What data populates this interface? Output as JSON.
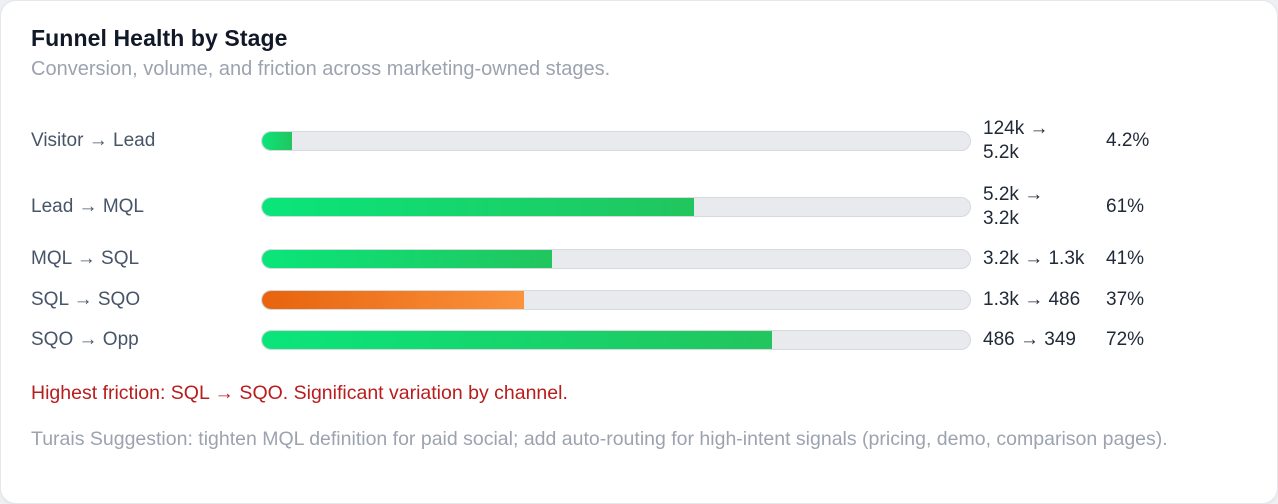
{
  "card": {
    "title": "Funnel Health by Stage",
    "subtitle": "Conversion, volume, and friction across marketing-owned stages.",
    "friction_note": "Highest friction: SQL → SQO. Significant variation by channel.",
    "suggestion_note": "Turais Suggestion: tighten MQL definition for paid social; add auto-routing for high-intent signals (pricing, demo, comparison pages)."
  },
  "colors": {
    "green": {
      "start": "#0ae57a",
      "end": "#22c55e"
    },
    "orange": {
      "start": "#e8630d",
      "end": "#fb923c"
    },
    "track": "#e8eaee",
    "friction_text": "#b91c1c",
    "muted_text": "#9ca3af"
  },
  "rows": [
    {
      "label": "Visitor → Lead",
      "value_lines": [
        "124k →",
        "5.2k"
      ],
      "pct_label": "4.2%",
      "pct_value": 4.2,
      "color": "green"
    },
    {
      "label": "Lead → MQL",
      "value_lines": [
        "5.2k →",
        "3.2k"
      ],
      "pct_label": "61%",
      "pct_value": 61,
      "color": "green"
    },
    {
      "label": "MQL → SQL",
      "value_lines": [
        "3.2k → 1.3k"
      ],
      "pct_label": "41%",
      "pct_value": 41,
      "color": "green"
    },
    {
      "label": "SQL → SQO",
      "value_lines": [
        "1.3k → 486"
      ],
      "pct_label": "37%",
      "pct_value": 37,
      "color": "orange"
    },
    {
      "label": "SQO → Opp",
      "value_lines": [
        "486 → 349"
      ],
      "pct_label": "72%",
      "pct_value": 72,
      "color": "green"
    }
  ],
  "chart_data": {
    "type": "bar",
    "orientation": "horizontal",
    "title": "Funnel Health by Stage",
    "subtitle": "Conversion, volume, and friction across marketing-owned stages.",
    "categories": [
      "Visitor → Lead",
      "Lead → MQL",
      "MQL → SQL",
      "SQL → SQO",
      "SQO → Opp"
    ],
    "values": [
      4.2,
      61,
      41,
      37,
      72
    ],
    "unit": "%",
    "xlim": [
      0,
      100
    ],
    "volumes": [
      {
        "from": "124k",
        "to": "5.2k"
      },
      {
        "from": "5.2k",
        "to": "3.2k"
      },
      {
        "from": "3.2k",
        "to": "1.3k"
      },
      {
        "from": "1.3k",
        "to": "486"
      },
      {
        "from": "486",
        "to": "349"
      }
    ],
    "bar_colors": [
      "green",
      "green",
      "green",
      "orange",
      "green"
    ],
    "annotations": [
      "Highest friction: SQL → SQO. Significant variation by channel.",
      "Turais Suggestion: tighten MQL definition for paid social; add auto-routing for high-intent signals (pricing, demo, comparison pages)."
    ]
  }
}
